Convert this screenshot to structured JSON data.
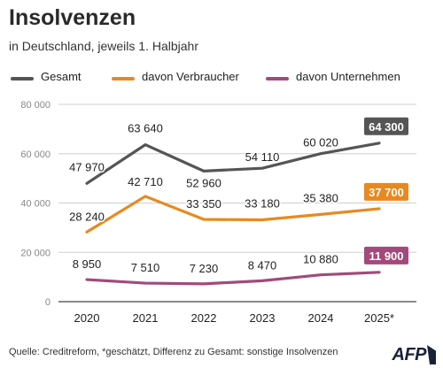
{
  "title": "Insolvenzen",
  "subtitle": "in Deutschland, jeweils 1. Halbjahr",
  "source": "Quelle: Creditreform, *geschätzt, Differenz zu Gesamt: sonstige Insolvenzen",
  "logo_text": "AFP",
  "chart_data": {
    "type": "line",
    "title": "Insolvenzen",
    "subtitle": "in Deutschland, jeweils 1. Halbjahr",
    "categories": [
      "2020",
      "2021",
      "2022",
      "2023",
      "2024",
      "2025*"
    ],
    "ylim": [
      0,
      80000
    ],
    "yticks": [
      0,
      20000,
      40000,
      60000,
      80000
    ],
    "ytick_labels": [
      "0",
      "20 000",
      "40 000",
      "60 000",
      "80 000"
    ],
    "grid": "horizontal",
    "legend": "top",
    "series": [
      {
        "name": "Gesamt",
        "color": "#555555",
        "values": [
          47970,
          63640,
          52960,
          54110,
          60020,
          64300
        ],
        "labels": [
          "47 970",
          "63 640",
          "52 960",
          "54 110",
          "60 020",
          "64 300"
        ]
      },
      {
        "name": "davon Verbraucher",
        "color": "#e8891f",
        "values": [
          28240,
          42710,
          33350,
          33180,
          35380,
          37700
        ],
        "labels": [
          "28 240",
          "42 710",
          "33 350",
          "33 180",
          "35 380",
          "37 700"
        ]
      },
      {
        "name": "davon Unternehmen",
        "color": "#a24a7b",
        "values": [
          8950,
          7510,
          7230,
          8470,
          10880,
          11900
        ],
        "labels": [
          "8 950",
          "7 510",
          "7 230",
          "8 470",
          "10 880",
          "11 900"
        ]
      }
    ]
  }
}
